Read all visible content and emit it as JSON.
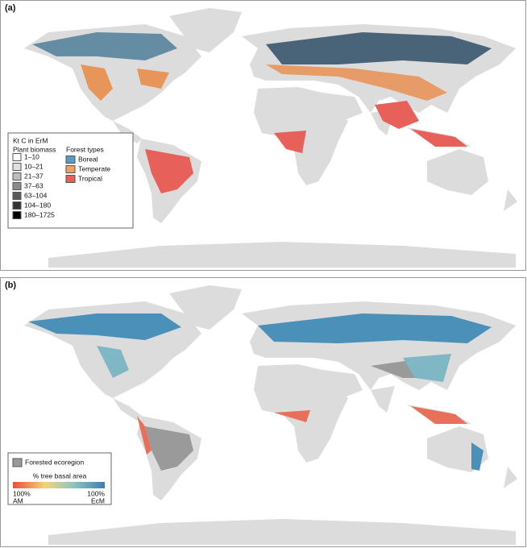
{
  "panel_a": {
    "label": "(a)",
    "legend": {
      "title": "Kt C in ErM",
      "subtitle": "Plant biomass",
      "biomass_classes": [
        "1–10",
        "10–21",
        "21–37",
        "37–63",
        "63–104",
        "104–180",
        "180–1725"
      ],
      "forest_types_title": "Forest types",
      "forest_types": [
        "Boreal",
        "Temperate",
        "Tropical"
      ]
    }
  },
  "panel_b": {
    "label": "(b)",
    "legend": {
      "forested": "Forested ecoregion",
      "gradient_title": "% tree basal area",
      "left_value": "100%",
      "left_label": "AM",
      "right_value": "100%",
      "right_label": "EcM"
    }
  }
}
